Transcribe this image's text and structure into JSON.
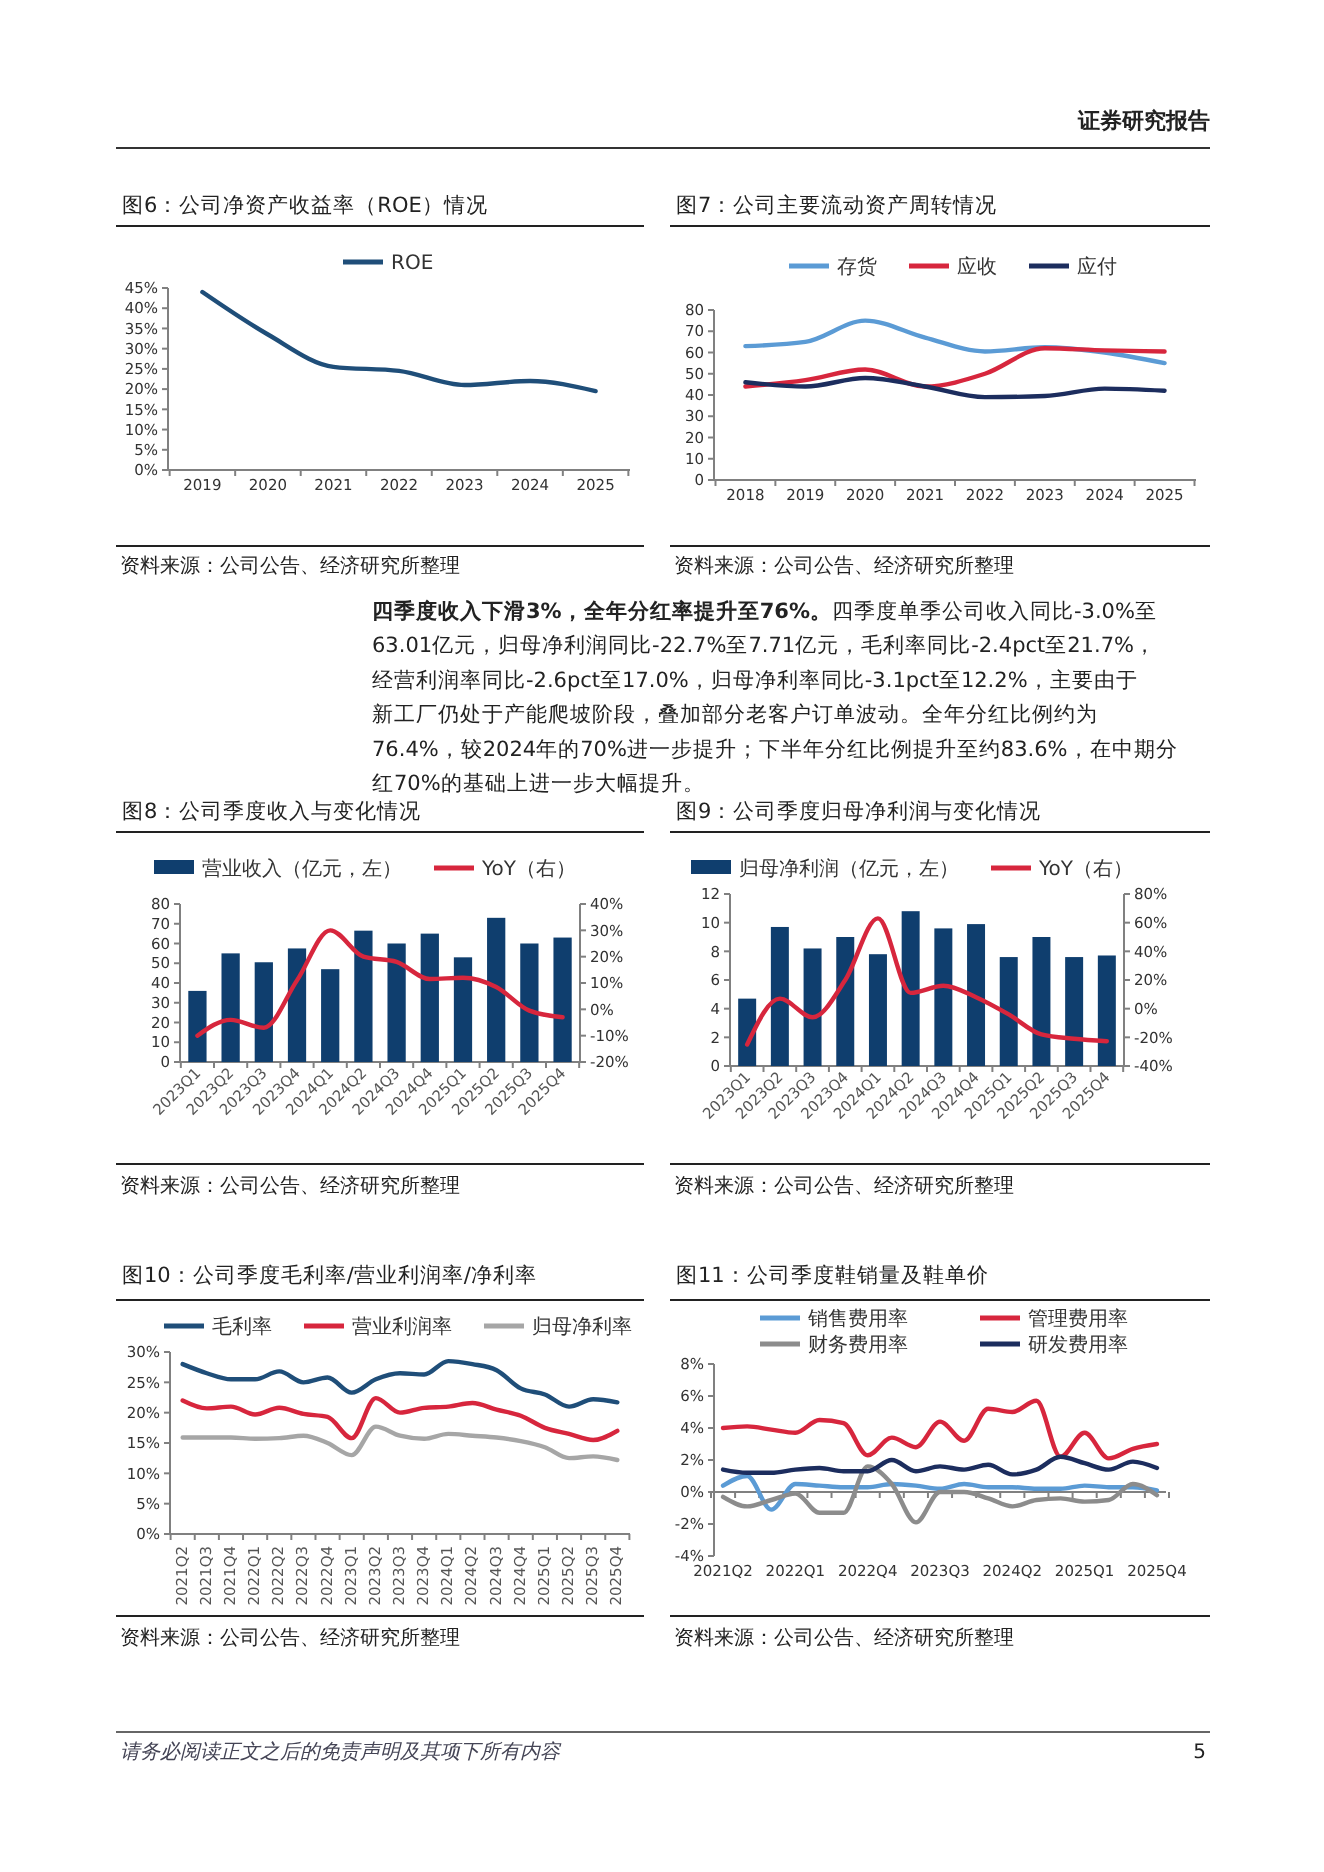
{
  "chart_data": [
    {
      "type": "other",
      "annotations": [
        "证券研究报告"
      ]
    },
    {
      "type": "line",
      "title": "图6：公司净资产收益率（ROE）情况",
      "categories": [
        "2019",
        "2020",
        "2021",
        "2022",
        "2023",
        "2024",
        "2025"
      ],
      "series": [
        {
          "name": "ROE",
          "color": "#1f4e79",
          "values": [
            44,
            33.5,
            25.5,
            24.5,
            21,
            22,
            19.5
          ]
        }
      ],
      "ylim": [
        0,
        45
      ],
      "yticks": [
        {
          "value": 0,
          "label": "0%"
        },
        {
          "value": 5,
          "label": "5%"
        },
        {
          "value": 10,
          "label": "10%"
        },
        {
          "value": 15,
          "label": "15%"
        },
        {
          "value": 20,
          "label": "20%"
        },
        {
          "value": 25,
          "label": "25%"
        },
        {
          "value": 30,
          "label": "30%"
        },
        {
          "value": 35,
          "label": "35%"
        },
        {
          "value": 40,
          "label": "40%"
        },
        {
          "value": 45,
          "label": "45%"
        }
      ],
      "legend": "top",
      "annotations": [
        "资料来源：公司公告、经济研究所整理"
      ]
    },
    {
      "type": "line",
      "title": "图7：公司主要流动资产周转情况",
      "categories": [
        "2018",
        "2019",
        "2020",
        "2021",
        "2022",
        "2023",
        "2024",
        "2025"
      ],
      "series": [
        {
          "name": "存货",
          "color": "#5b9bd5",
          "values": [
            63,
            65,
            75,
            67,
            60.5,
            62.5,
            60,
            55
          ]
        },
        {
          "name": "应收",
          "color": "#d7263d",
          "values": [
            44,
            47,
            52,
            44,
            50,
            62,
            61,
            60.5
          ]
        },
        {
          "name": "应付",
          "color": "#1c2d5e",
          "values": [
            46,
            44,
            48,
            44,
            39,
            39.5,
            43,
            42
          ]
        }
      ],
      "ylim": [
        0,
        80
      ],
      "yticks": [
        0,
        10,
        20,
        30,
        40,
        50,
        60,
        70,
        80
      ],
      "legend": "top",
      "annotations": [
        "资料来源：公司公告、经济研究所整理"
      ]
    },
    {
      "type": "other",
      "title": "四季度收入下滑3%，全年分红率提升至76%。",
      "annotations": [
        "四季度单季公司收入同比-3.0%至",
        "63.01亿元，归母净利润同比-22.7%至7.71亿元，毛利率同比-2.4pct至21.7%，",
        "经营利润率同比-2.6pct至17.0%，归母净利率同比-3.1pct至12.2%，主要由于",
        "新工厂仍处于产能爬坡阶段，叠加部分老客户订单波动。全年分红比例约为",
        "76.4%，较2024年的70%进一步提升；下半年分红比例提升至约83.6%，在中期分",
        "红70%的基础上进一步大幅提升。"
      ]
    },
    {
      "type": "bar",
      "title": "图8：公司季度收入与变化情况",
      "categories": [
        "2023Q1",
        "2023Q2",
        "2023Q3",
        "2023Q4",
        "2024Q1",
        "2024Q2",
        "2024Q3",
        "2024Q4",
        "2025Q1",
        "2025Q2",
        "2025Q3",
        "2025Q4"
      ],
      "series": [
        {
          "name": "营业收入（亿元，左）",
          "color": "#0f3e6e",
          "values": [
            36,
            55,
            50.5,
            57.5,
            47,
            66.5,
            60,
            65,
            53,
            73,
            60,
            63.01
          ]
        },
        {
          "name": "YoY（右）",
          "type": "line",
          "axis": "y2",
          "color": "#d7263d",
          "values": [
            -10,
            -4,
            -7,
            11,
            30,
            20,
            18,
            11.5,
            12,
            8.5,
            -0.5,
            -3
          ]
        }
      ],
      "ylim": [
        0,
        80
      ],
      "yticks": [
        0,
        10,
        20,
        30,
        40,
        50,
        60,
        70,
        80
      ],
      "y2lim": [
        -20,
        40
      ],
      "y2ticks": [
        {
          "value": -20,
          "label": "-20%"
        },
        {
          "value": -10,
          "label": "-10%"
        },
        {
          "value": 0,
          "label": "0%"
        },
        {
          "value": 10,
          "label": "10%"
        },
        {
          "value": 20,
          "label": "20%"
        },
        {
          "value": 30,
          "label": "30%"
        },
        {
          "value": 40,
          "label": "40%"
        }
      ],
      "legend": "top",
      "annotations": [
        "资料来源：公司公告、经济研究所整理"
      ]
    },
    {
      "type": "bar",
      "title": "图9：公司季度归母净利润与变化情况",
      "categories": [
        "2023Q1",
        "2023Q2",
        "2023Q3",
        "2023Q4",
        "2024Q1",
        "2024Q2",
        "2024Q3",
        "2024Q4",
        "2025Q1",
        "2025Q2",
        "2025Q3",
        "2025Q4"
      ],
      "series": [
        {
          "name": "归母净利润（亿元，左）",
          "color": "#0f3e6e",
          "values": [
            4.7,
            9.7,
            8.2,
            9,
            7.8,
            10.8,
            9.6,
            9.9,
            7.6,
            9,
            7.6,
            7.71
          ]
        },
        {
          "name": "YoY（右）",
          "type": "line",
          "axis": "y2",
          "color": "#d7263d",
          "values": [
            -25,
            7,
            -6,
            20,
            63,
            11,
            16,
            8,
            -4,
            -18,
            -21,
            -22.7
          ]
        }
      ],
      "ylim": [
        0,
        12
      ],
      "yticks": [
        0,
        2,
        4,
        6,
        8,
        10,
        12
      ],
      "y2lim": [
        -40,
        80
      ],
      "y2ticks": [
        {
          "value": -40,
          "label": "-40%"
        },
        {
          "value": -20,
          "label": "-20%"
        },
        {
          "value": 0,
          "label": "0%"
        },
        {
          "value": 20,
          "label": "20%"
        },
        {
          "value": 40,
          "label": "40%"
        },
        {
          "value": 60,
          "label": "60%"
        },
        {
          "value": 80,
          "label": "80%"
        }
      ],
      "legend": "top",
      "annotations": [
        "资料来源：公司公告、经济研究所整理"
      ]
    },
    {
      "type": "line",
      "title": "图10：公司季度毛利率/营业利润率/净利率",
      "categories": [
        "2021Q2",
        "2021Q3",
        "2021Q4",
        "2022Q1",
        "2022Q2",
        "2022Q3",
        "2022Q4",
        "2023Q1",
        "2023Q2",
        "2023Q3",
        "2023Q4",
        "2024Q1",
        "2024Q2",
        "2024Q3",
        "2024Q4",
        "2025Q1",
        "2025Q2",
        "2025Q3",
        "2025Q4"
      ],
      "series": [
        {
          "name": "毛利率",
          "color": "#1f4e79",
          "values": [
            28,
            26.5,
            25.5,
            25.5,
            26.8,
            25,
            25.8,
            23.3,
            25.5,
            26.5,
            26.3,
            28.5,
            28,
            27,
            24,
            23,
            21,
            22.2,
            21.7
          ]
        },
        {
          "name": "营业利润率",
          "color": "#d7263d",
          "values": [
            22,
            20.7,
            21,
            19.7,
            20.8,
            19.8,
            19.3,
            15.8,
            22.4,
            20,
            20.8,
            21,
            21.6,
            20.5,
            19.5,
            17.5,
            16.5,
            15.5,
            17
          ]
        },
        {
          "name": "归母净利率",
          "color": "#a6a6a6",
          "values": [
            15.9,
            15.9,
            15.9,
            15.7,
            15.8,
            16.2,
            15,
            13,
            17.7,
            16.2,
            15.7,
            16.5,
            16.2,
            15.9,
            15.3,
            14.3,
            12.5,
            12.8,
            12.2
          ]
        }
      ],
      "ylim": [
        0,
        30
      ],
      "yticks": [
        {
          "value": 0,
          "label": "0%"
        },
        {
          "value": 5,
          "label": "5%"
        },
        {
          "value": 10,
          "label": "10%"
        },
        {
          "value": 15,
          "label": "15%"
        },
        {
          "value": 20,
          "label": "20%"
        },
        {
          "value": 25,
          "label": "25%"
        },
        {
          "value": 30,
          "label": "30%"
        }
      ],
      "legend": "top",
      "annotations": [
        "资料来源：公司公告、经济研究所整理"
      ]
    },
    {
      "type": "line",
      "title": "图11：公司季度鞋销量及鞋单价",
      "categories": [
        "2021Q2",
        null,
        null,
        "2022Q1",
        null,
        null,
        "2022Q4",
        null,
        null,
        "2023Q3",
        null,
        null,
        "2024Q2",
        null,
        null,
        "2025Q1",
        null,
        null,
        "2025Q4"
      ],
      "series": [
        {
          "name": "销售费用率",
          "color": "#5b9bd5",
          "values": [
            0.4,
            1,
            -1.1,
            0.5,
            0.4,
            0.3,
            0.3,
            0.5,
            0.4,
            0.2,
            0.5,
            0.3,
            0.3,
            0.2,
            0.2,
            0.4,
            0.3,
            0.3,
            0.1
          ]
        },
        {
          "name": "管理费用率",
          "color": "#d7263d",
          "values": [
            4,
            4.1,
            3.9,
            3.7,
            4.5,
            4.3,
            2.3,
            3.4,
            2.8,
            4.4,
            3.2,
            5.2,
            5,
            5.7,
            2.2,
            3.7,
            2.1,
            2.7,
            3
          ]
        },
        {
          "name": "财务费用率",
          "color": "#8c8c8c",
          "values": [
            -0.3,
            -0.9,
            -0.5,
            -0.1,
            -1.3,
            -1.3,
            1.6,
            0.5,
            -1.9,
            0,
            0,
            -0.4,
            -0.9,
            -0.5,
            -0.4,
            -0.6,
            -0.5,
            0.5,
            -0.2
          ]
        },
        {
          "name": "研发费用率",
          "color": "#1c2d5e",
          "values": [
            1.4,
            1.2,
            1.2,
            1.4,
            1.5,
            1.3,
            1.3,
            2,
            1.3,
            1.6,
            1.4,
            1.7,
            1.1,
            1.4,
            2.2,
            1.8,
            1.4,
            1.9,
            1.5
          ]
        }
      ],
      "ylim": [
        -4,
        8
      ],
      "yticks": [
        {
          "value": -4,
          "label": "-4%"
        },
        {
          "value": -2,
          "label": "-2%"
        },
        {
          "value": 0,
          "label": "0%"
        },
        {
          "value": 2,
          "label": "2%"
        },
        {
          "value": 4,
          "label": "4%"
        },
        {
          "value": 6,
          "label": "6%"
        },
        {
          "value": 8,
          "label": "8%"
        }
      ],
      "legend": "top",
      "annotations": [
        "资料来源：公司公告、经济研究所整理"
      ]
    },
    {
      "type": "other",
      "annotations": [
        "请务必阅读正文之后的免责声明及其项下所有内容",
        "5"
      ]
    }
  ]
}
